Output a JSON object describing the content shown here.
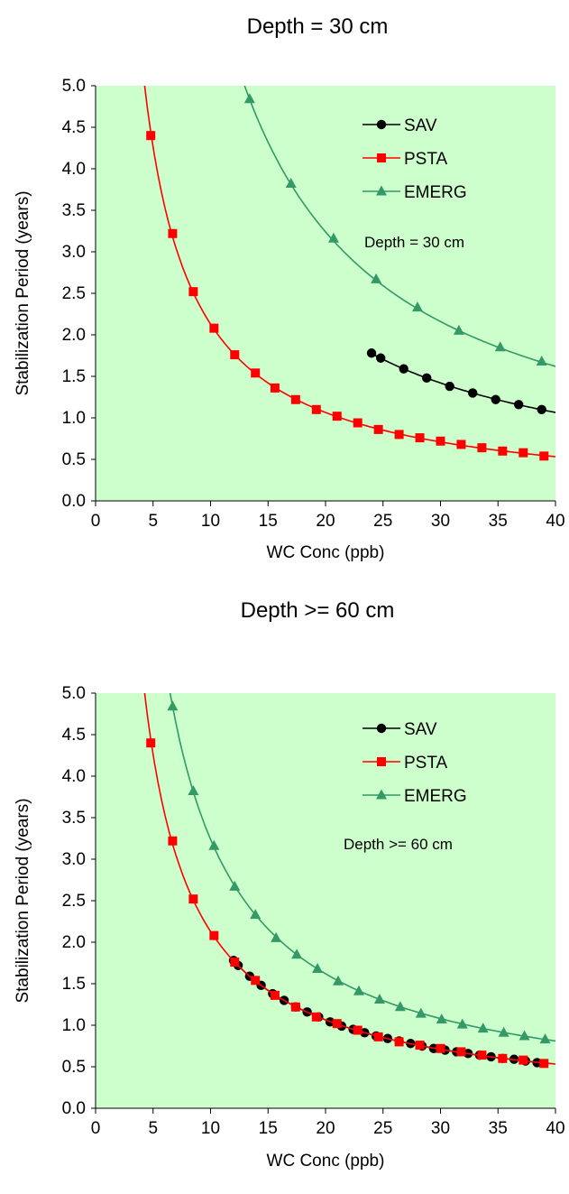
{
  "chart_data": [
    {
      "type": "line",
      "title": "Depth = 30 cm",
      "annotation": "Depth = 30 cm",
      "xlabel": "WC Conc (ppb)",
      "ylabel": "Stabilization Period (years)",
      "xlim": [
        0,
        40
      ],
      "ylim": [
        0,
        5
      ],
      "xticks": [
        0,
        5,
        10,
        15,
        20,
        25,
        30,
        35,
        40
      ],
      "yticks": [
        "0.0",
        "0.5",
        "1.0",
        "1.5",
        "2.0",
        "2.5",
        "3.0",
        "3.5",
        "4.0",
        "4.5",
        "5.0"
      ],
      "grid": false,
      "plot_background": "#ccffcc",
      "legend_position": "top-right",
      "series": [
        {
          "name": "SAV",
          "color": "#000000",
          "marker": "circle",
          "curve": {
            "x_start": 24.0,
            "x_end": 41.0,
            "a": 42.6
          },
          "points": {
            "x": [
              24.0,
              24.8,
              26.8,
              28.8,
              30.8,
              32.8,
              34.8,
              36.8,
              38.8
            ],
            "y": [
              1.78,
              1.72,
              1.59,
              1.48,
              1.38,
              1.3,
              1.22,
              1.16,
              1.1
            ]
          }
        },
        {
          "name": "PSTA",
          "color": "#ff0000",
          "marker": "square",
          "curve": {
            "x_start": 4.2,
            "x_end": 41.0,
            "a": 21.3
          },
          "points": {
            "x": [
              4.8,
              6.7,
              8.5,
              10.3,
              12.1,
              13.9,
              15.6,
              17.4,
              19.2,
              21.0,
              22.8,
              24.6,
              26.4,
              28.2,
              30.0,
              31.8,
              33.6,
              35.4,
              37.2,
              39.0
            ],
            "y": [
              4.4,
              3.22,
              2.52,
              2.08,
              1.76,
              1.54,
              1.36,
              1.22,
              1.1,
              1.02,
              0.94,
              0.86,
              0.8,
              0.76,
              0.72,
              0.68,
              0.64,
              0.6,
              0.58,
              0.54
            ]
          }
        },
        {
          "name": "EMERG",
          "color": "#339966",
          "marker": "triangle",
          "curve": {
            "x_start": 12.8,
            "x_end": 41.0,
            "a": 64.8
          },
          "points": {
            "x": [
              13.4,
              17.0,
              20.7,
              24.4,
              28.0,
              31.6,
              35.2,
              38.8
            ],
            "y": [
              4.84,
              3.82,
              3.16,
              2.67,
              2.33,
              2.05,
              1.85,
              1.68
            ]
          }
        }
      ]
    },
    {
      "type": "line",
      "title": "Depth >= 60 cm",
      "annotation": "Depth >= 60 cm",
      "xlabel": "WC Conc (ppb)",
      "ylabel": "Stabilization Period (years)",
      "xlim": [
        0,
        40
      ],
      "ylim": [
        0,
        5
      ],
      "xticks": [
        0,
        5,
        10,
        15,
        20,
        25,
        30,
        35,
        40
      ],
      "yticks": [
        "0.0",
        "0.5",
        "1.0",
        "1.5",
        "2.0",
        "2.5",
        "3.0",
        "3.5",
        "4.0",
        "4.5",
        "5.0"
      ],
      "grid": false,
      "plot_background": "#ccffcc",
      "legend_position": "top-right",
      "series": [
        {
          "name": "SAV",
          "color": "#000000",
          "marker": "circle",
          "curve": {
            "x_start": 12.0,
            "x_end": 39.0,
            "a": 21.3
          },
          "points": {
            "x": [
              12.0,
              12.4,
              13.4,
              14.4,
              15.4,
              16.4,
              17.4,
              18.4,
              19.4,
              20.4,
              21.4,
              22.4,
              23.4,
              24.4,
              25.4,
              26.4,
              27.4,
              28.4,
              29.4,
              30.4,
              31.4,
              32.4,
              33.4,
              34.4,
              35.4,
              36.4,
              37.4,
              38.4
            ],
            "y": [
              1.78,
              1.72,
              1.59,
              1.48,
              1.38,
              1.3,
              1.22,
              1.16,
              1.1,
              1.04,
              0.99,
              0.95,
              0.91,
              0.87,
              0.84,
              0.81,
              0.78,
              0.75,
              0.72,
              0.7,
              0.68,
              0.66,
              0.64,
              0.62,
              0.6,
              0.59,
              0.57,
              0.55
            ]
          }
        },
        {
          "name": "PSTA",
          "color": "#ff0000",
          "marker": "square",
          "curve": {
            "x_start": 4.2,
            "x_end": 41.0,
            "a": 21.3
          },
          "points": {
            "x": [
              4.8,
              6.7,
              8.5,
              10.3,
              12.1,
              13.9,
              15.6,
              17.4,
              19.2,
              21.0,
              22.8,
              24.6,
              26.4,
              28.2,
              30.0,
              31.8,
              33.6,
              35.4,
              37.2,
              39.0
            ],
            "y": [
              4.4,
              3.22,
              2.52,
              2.08,
              1.76,
              1.54,
              1.36,
              1.22,
              1.1,
              1.02,
              0.94,
              0.86,
              0.8,
              0.76,
              0.72,
              0.68,
              0.64,
              0.6,
              0.58,
              0.54
            ]
          }
        },
        {
          "name": "EMERG",
          "color": "#339966",
          "marker": "triangle",
          "curve": {
            "x_start": 6.4,
            "x_end": 41.0,
            "a": 32.4
          },
          "points": {
            "x": [
              6.7,
              8.5,
              10.3,
              12.1,
              13.9,
              15.7,
              17.5,
              19.3,
              21.1,
              22.9,
              24.7,
              26.5,
              28.3,
              30.1,
              31.9,
              33.7,
              35.5,
              37.3,
              39.1
            ],
            "y": [
              4.84,
              3.82,
              3.16,
              2.67,
              2.33,
              2.05,
              1.85,
              1.68,
              1.53,
              1.41,
              1.31,
              1.22,
              1.14,
              1.07,
              1.01,
              0.96,
              0.91,
              0.87,
              0.83
            ]
          }
        }
      ]
    }
  ]
}
